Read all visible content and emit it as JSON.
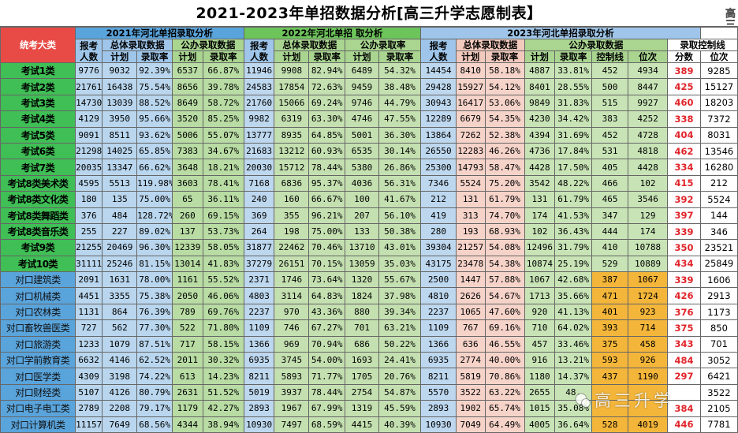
{
  "title": "2021-2023年单招数据分析[高三升学志愿制表】",
  "brand_vertical": "高三升学志愿",
  "watermark": "高三升学",
  "headers": {
    "category": "统考大类",
    "y2021": "2021年河北单招录取分析",
    "y2022": "2022年河北单招 取分析",
    "y2023": "2023年河北单招录取分析",
    "applicants": "报考人数",
    "applicants_short": "报考",
    "applicants_unit": "人数",
    "overall": "总体录取数据",
    "public": "公办录取数据",
    "public_short": "公办录取率",
    "plan": "计划",
    "rate": "录取率",
    "control_line_group": "录取控制线",
    "control_line": "控制线",
    "rank": "位次",
    "score": "分数"
  },
  "colors": {
    "category_green": "#3fbf55",
    "category_blue": "#5aa4dc",
    "header_red": "#e84b46",
    "score_red": "#e0242a",
    "orange": "#f4b63a"
  },
  "rows": [
    {
      "cat": "考试1类",
      "type": "exam",
      "a21": "9776",
      "p21": "9032",
      "r21": "92.39%",
      "pp21": "6537",
      "pr21": "66.87%",
      "a22": "11946",
      "p22": "9908",
      "r22": "82.94%",
      "pp22": "6489",
      "pr22": "54.32%",
      "a23": "14454",
      "p23": "8410",
      "r23": "58.18%",
      "pp23": "4887",
      "pr23": "33.81%",
      "ctl": "452",
      "rank": "4934",
      "score": "389",
      "rank2": "9285"
    },
    {
      "cat": "考试2类",
      "type": "exam",
      "a21": "21761",
      "p21": "16438",
      "r21": "75.54%",
      "pp21": "8656",
      "pr21": "39.78%",
      "a22": "24583",
      "p22": "17854",
      "r22": "72.63%",
      "pp22": "9459",
      "pr22": "38.48%",
      "a23": "29428",
      "p23": "15927",
      "r23": "54.12%",
      "pp23": "8401",
      "pr23": "28.55%",
      "ctl": "500",
      "rank": "8447",
      "score": "425",
      "rank2": "15127"
    },
    {
      "cat": "考试3类",
      "type": "exam",
      "a21": "14730",
      "p21": "13039",
      "r21": "88.52%",
      "pp21": "8649",
      "pr21": "58.72%",
      "a22": "21760",
      "p22": "15066",
      "r22": "69.24%",
      "pp22": "9746",
      "pr22": "44.79%",
      "a23": "30943",
      "p23": "16417",
      "r23": "53.06%",
      "pp23": "9849",
      "pr23": "31.83%",
      "ctl": "515",
      "rank": "9927",
      "score": "460",
      "rank2": "18203"
    },
    {
      "cat": "考试4类",
      "type": "exam",
      "a21": "4129",
      "p21": "3950",
      "r21": "95.66%",
      "pp21": "3520",
      "pr21": "85.25%",
      "a22": "9982",
      "p22": "6319",
      "r22": "63.30%",
      "pp22": "4746",
      "pr22": "47.55%",
      "a23": "12289",
      "p23": "6679",
      "r23": "54.35%",
      "pp23": "4230",
      "pr23": "34.42%",
      "ctl": "383",
      "rank": "4252",
      "score": "338",
      "rank2": "7372"
    },
    {
      "cat": "考试5类",
      "type": "exam",
      "a21": "9091",
      "p21": "8511",
      "r21": "93.62%",
      "pp21": "5006",
      "pr21": "55.07%",
      "a22": "13777",
      "p22": "8935",
      "r22": "64.85%",
      "pp22": "5001",
      "pr22": "36.30%",
      "a23": "13864",
      "p23": "7262",
      "r23": "52.38%",
      "pp23": "4394",
      "pr23": "31.69%",
      "ctl": "452",
      "rank": "4728",
      "score": "404",
      "rank2": "8031"
    },
    {
      "cat": "考试6类",
      "type": "exam",
      "a21": "21298",
      "p21": "14025",
      "r21": "65.85%",
      "pp21": "7383",
      "pr21": "34.67%",
      "a22": "21683",
      "p22": "13212",
      "r22": "60.93%",
      "pp22": "6535",
      "pr22": "30.14%",
      "a23": "26550",
      "p23": "12283",
      "r23": "46.26%",
      "pp23": "4736",
      "pr23": "17.84%",
      "ctl": "531",
      "rank": "4818",
      "score": "462",
      "rank2": "13546"
    },
    {
      "cat": "考试7类",
      "type": "exam",
      "a21": "20035",
      "p21": "13347",
      "r21": "66.62%",
      "pp21": "3648",
      "pr21": "18.21%",
      "a22": "20030",
      "p22": "15712",
      "r22": "78.44%",
      "pp22": "5380",
      "pr22": "26.86%",
      "a23": "25300",
      "p23": "14793",
      "r23": "58.47%",
      "pp23": "4428",
      "pr23": "17.50%",
      "ctl": "405",
      "rank": "4428",
      "score": "334",
      "rank2": "16280"
    },
    {
      "cat": "考试8类美术类",
      "type": "exam",
      "a21": "4595",
      "p21": "5513",
      "r21": "119.98%",
      "pp21": "3603",
      "pr21": "78.41%",
      "a22": "7168",
      "p22": "6836",
      "r22": "95.37%",
      "pp22": "4036",
      "pr22": "56.31%",
      "a23": "7346",
      "p23": "5524",
      "r23": "75.20%",
      "pp23": "3542",
      "pr23": "48.22%",
      "ctl": "466",
      "rank": "102",
      "score": "415",
      "rank2": "212"
    },
    {
      "cat": "考试8类文化类",
      "type": "exam",
      "a21": "180",
      "p21": "135",
      "r21": "75.00%",
      "pp21": "65",
      "pr21": "36.11%",
      "a22": "240",
      "p22": "160",
      "r22": "66.67%",
      "pp22": "100",
      "pr22": "41.67%",
      "a23": "212",
      "p23": "131",
      "r23": "61.79%",
      "pp23": "131",
      "pr23": "61.79%",
      "ctl": "465",
      "rank": "3546",
      "score": "392",
      "rank2": "5524"
    },
    {
      "cat": "考试8类舞蹈类",
      "type": "exam",
      "a21": "376",
      "p21": "484",
      "r21": "128.72%",
      "pp21": "260",
      "pr21": "69.15%",
      "a22": "369",
      "p22": "355",
      "r22": "96.21%",
      "pp22": "207",
      "pr22": "56.10%",
      "a23": "419",
      "p23": "313",
      "r23": "74.70%",
      "pp23": "174",
      "pr23": "41.53%",
      "ctl": "347",
      "rank": "129",
      "score": "397",
      "rank2": "144"
    },
    {
      "cat": "考试8类音乐类",
      "type": "exam",
      "a21": "255",
      "p21": "227",
      "r21": "89.02%",
      "pp21": "137",
      "pr21": "53.73%",
      "a22": "264",
      "p22": "198",
      "r22": "75.00%",
      "pp22": "133",
      "pr22": "50.38%",
      "a23": "280",
      "p23": "193",
      "r23": "68.93%",
      "pp23": "102",
      "pr23": "36.43%",
      "ctl": "444",
      "rank": "174",
      "score": "339",
      "rank2": "346"
    },
    {
      "cat": "考试9类",
      "type": "exam",
      "a21": "21255",
      "p21": "20469",
      "r21": "96.30%",
      "pp21": "12339",
      "pr21": "58.05%",
      "a22": "31877",
      "p22": "22462",
      "r22": "70.46%",
      "pp22": "13710",
      "pr22": "43.01%",
      "a23": "39304",
      "p23": "21257",
      "r23": "54.08%",
      "pp23": "12496",
      "pr23": "31.79%",
      "ctl": "410",
      "rank": "10788",
      "score": "350",
      "rank2": "23521"
    },
    {
      "cat": "考试10类",
      "type": "exam",
      "a21": "31111",
      "p21": "25246",
      "r21": "81.15%",
      "pp21": "13014",
      "pr21": "41.83%",
      "a22": "37279",
      "p22": "26151",
      "r22": "70.15%",
      "pp22": "13059",
      "pr22": "35.03%",
      "a23": "43175",
      "p23": "23478",
      "r23": "54.38%",
      "pp23": "10874",
      "pr23": "25.19%",
      "ctl": "529",
      "rank": "10889",
      "score": "434",
      "rank2": "25849"
    },
    {
      "cat": "对口建筑类",
      "type": "voc",
      "a21": "2091",
      "p21": "1631",
      "r21": "78.00%",
      "pp21": "1161",
      "pr21": "55.52%",
      "a22": "2371",
      "p22": "1746",
      "r22": "73.64%",
      "pp22": "1320",
      "pr22": "55.67%",
      "a23": "2500",
      "p23": "1447",
      "r23": "57.88%",
      "pp23": "1067",
      "pr23": "42.68%",
      "ctl": "387",
      "rank": "1067",
      "score": "339",
      "rank2": "1606"
    },
    {
      "cat": "对口机械类",
      "type": "voc",
      "a21": "4451",
      "p21": "3355",
      "r21": "75.38%",
      "pp21": "2050",
      "pr21": "46.06%",
      "a22": "4803",
      "p22": "3114",
      "r22": "64.83%",
      "pp22": "1824",
      "pr22": "37.98%",
      "a23": "4810",
      "p23": "2626",
      "r23": "54.67%",
      "pp23": "1713",
      "pr23": "35.66%",
      "ctl": "471",
      "rank": "1724",
      "score": "426",
      "rank2": "2913"
    },
    {
      "cat": "对口农林类",
      "type": "voc",
      "a21": "1131",
      "p21": "864",
      "r21": "76.39%",
      "pp21": "789",
      "pr21": "69.76%",
      "a22": "2237",
      "p22": "970",
      "r22": "43.36%",
      "pp22": "880",
      "pr22": "39.34%",
      "a23": "2237",
      "p23": "1065",
      "r23": "47.60%",
      "pp23": "920",
      "pr23": "41.13%",
      "ctl": "401",
      "rank": "923",
      "score": "376",
      "rank2": "1173"
    },
    {
      "cat": "对口畜牧兽医类",
      "type": "voc",
      "a21": "727",
      "p21": "562",
      "r21": "77.30%",
      "pp21": "522",
      "pr21": "71.80%",
      "a22": "1109",
      "p22": "746",
      "r22": "67.27%",
      "pp22": "701",
      "pr22": "63.21%",
      "a23": "1109",
      "p23": "767",
      "r23": "69.16%",
      "pp23": "710",
      "pr23": "64.02%",
      "ctl": "393",
      "rank": "714",
      "score": "375",
      "rank2": "850"
    },
    {
      "cat": "对口旅游类",
      "type": "voc",
      "a21": "1233",
      "p21": "1079",
      "r21": "87.51%",
      "pp21": "717",
      "pr21": "58.15%",
      "a22": "1366",
      "p22": "969",
      "r22": "70.94%",
      "pp22": "686",
      "pr22": "50.22%",
      "a23": "1366",
      "p23": "636",
      "r23": "46.55%",
      "pp23": "457",
      "pr23": "33.46%",
      "ctl": "375",
      "rank": "458",
      "score": "343",
      "rank2": "701"
    },
    {
      "cat": "对口学前教育类",
      "type": "voc",
      "a21": "6632",
      "p21": "4146",
      "r21": "62.52%",
      "pp21": "2011",
      "pr21": "30.32%",
      "a22": "6935",
      "p22": "3745",
      "r22": "54.00%",
      "pp22": "1693",
      "pr22": "24.41%",
      "a23": "6935",
      "p23": "2774",
      "r23": "40.00%",
      "pp23": "916",
      "pr23": "13.21%",
      "ctl": "593",
      "rank": "926",
      "score": "484",
      "rank2": "3052"
    },
    {
      "cat": "对口医学类",
      "type": "voc",
      "a21": "4309",
      "p21": "3198",
      "r21": "74.22%",
      "pp21": "613",
      "pr21": "14.23%",
      "a22": "8211",
      "p22": "5893",
      "r22": "71.77%",
      "pp22": "1705",
      "pr22": "20.76%",
      "a23": "8211",
      "p23": "5819",
      "r23": "70.86%",
      "pp23": "1180",
      "pr23": "14.37%",
      "ctl": "437",
      "rank": "1190",
      "score": "297",
      "rank2": "6421"
    },
    {
      "cat": "对口财经类",
      "type": "voc",
      "a21": "5107",
      "p21": "4126",
      "r21": "80.79%",
      "pp21": "2631",
      "pr21": "51.52%",
      "a22": "5019",
      "p22": "3937",
      "r22": "78.44%",
      "pp22": "2754",
      "pr22": "54.87%",
      "a23": "5570",
      "p23": "3522",
      "r23": "63.22%",
      "pp23": "2655",
      "pr23": "48.",
      "ctl": "",
      "rank": "",
      "score": "",
      "rank2": "3522"
    },
    {
      "cat": "对口电子电工类",
      "type": "voc",
      "a21": "2789",
      "p21": "2208",
      "r21": "79.17%",
      "pp21": "1179",
      "pr21": "42.27%",
      "a22": "2893",
      "p22": "1967",
      "r22": "67.99%",
      "pp22": "1319",
      "pr22": "45.59%",
      "a23": "2893",
      "p23": "1902",
      "r23": "65.74%",
      "pp23": "1015",
      "pr23": "35.08%",
      "ctl": "",
      "rank": "",
      "score": "384",
      "rank2": "2105"
    },
    {
      "cat": "对口计算机类",
      "type": "voc",
      "a21": "11157",
      "p21": "7649",
      "r21": "68.56%",
      "pp21": "4344",
      "pr21": "38.94%",
      "a22": "10930",
      "p22": "7497",
      "r22": "68.59%",
      "pp22": "4415",
      "pr22": "40.39%",
      "a23": "10930",
      "p23": "7049",
      "r23": "64.49%",
      "pp23": "4005",
      "pr23": "36.64%",
      "ctl": "528",
      "rank": "4019",
      "score": "446",
      "rank2": "7781"
    }
  ]
}
